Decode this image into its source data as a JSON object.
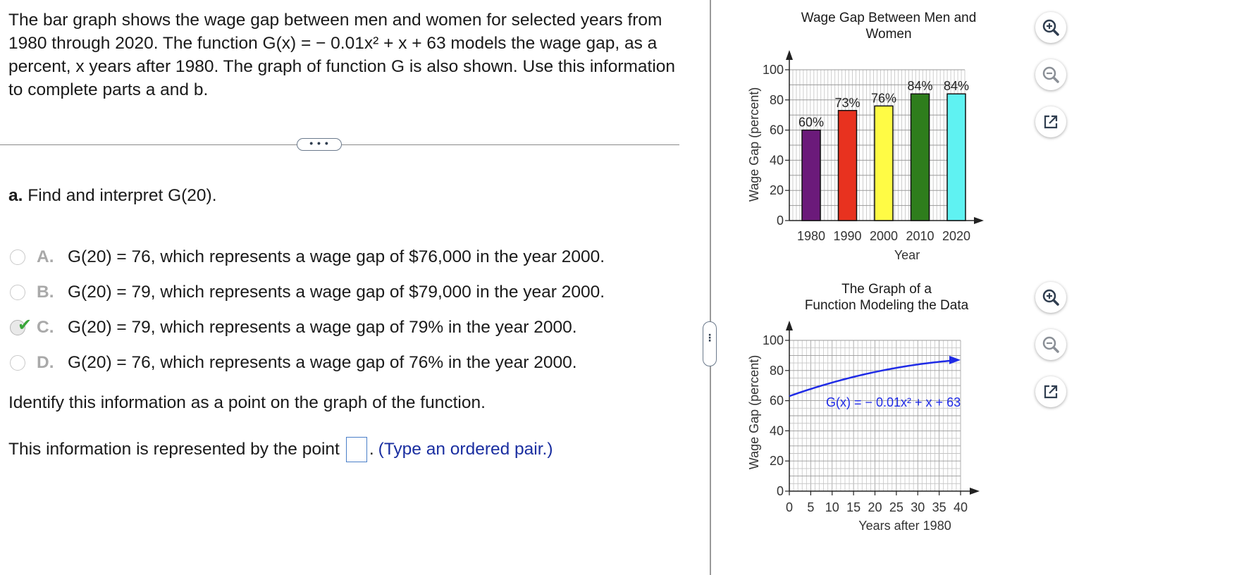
{
  "problem": {
    "intro": "The bar graph shows the wage gap between men and women for selected years from 1980 through 2020. The function G(x) = − 0.01x² + x + 63 models the wage gap, as a percent, x years after 1980. The graph of function G is also shown. Use this information to complete parts a and b.",
    "more_label": "• • •",
    "part_a_letter": "a.",
    "part_a_text": "Find and interpret G(20).",
    "options": [
      {
        "letter": "A.",
        "text": "G(20) = 76, which represents a wage gap of $76,000 in the year 2000.",
        "selected": false
      },
      {
        "letter": "B.",
        "text": "G(20) = 79, which represents a wage gap of $79,000 in the year 2000.",
        "selected": false
      },
      {
        "letter": "C.",
        "text": "G(20) = 79, which represents a wage gap of 79% in the year 2000.",
        "selected": true
      },
      {
        "letter": "D.",
        "text": "G(20) = 76, which represents a wage gap of 76% in the year 2000.",
        "selected": false
      }
    ],
    "identify_text": "Identify this information as a point on the graph of the function.",
    "point_prefix": "This information is represented by the point",
    "point_value": "",
    "point_suffix": ".",
    "point_hint": "(Type an ordered pair.)",
    "side_handle_label": "⋮"
  },
  "colors": {
    "accent_blue": "#1a2ea0",
    "check_green": "#3aa53a",
    "curve_blue": "#1f2be6"
  },
  "chart_data": [
    {
      "type": "bar",
      "title": "Wage Gap Between Men and Women",
      "xlabel": "Year",
      "ylabel": "Wage Gap (percent)",
      "categories": [
        "1980",
        "1990",
        "2000",
        "2010",
        "2020"
      ],
      "values": [
        60,
        73,
        76,
        84,
        84
      ],
      "data_labels": [
        "60%",
        "73%",
        "76%",
        "84%",
        "84%"
      ],
      "bar_colors": [
        "#6b1a7a",
        "#e8321f",
        "#fffb45",
        "#2e7d1c",
        "#5ff2f2"
      ],
      "ylim": [
        0,
        100
      ],
      "yticks": [
        "0",
        "20",
        "40",
        "60",
        "80",
        "100"
      ],
      "grid": true
    },
    {
      "type": "line",
      "title": "The Graph of a Function Modeling the Data",
      "xlabel": "Years after 1980",
      "ylabel": "Wage Gap (percent)",
      "annotation": "G(x) = − 0.01x² + x + 63",
      "function": {
        "a": -0.01,
        "b": 1,
        "c": 63
      },
      "xlim": [
        0,
        40
      ],
      "ylim": [
        0,
        100
      ],
      "xticks": [
        "0",
        "5",
        "10",
        "15",
        "20",
        "25",
        "30",
        "35",
        "40"
      ],
      "yticks": [
        "0",
        "20",
        "40",
        "60",
        "80",
        "100"
      ],
      "grid": true
    }
  ],
  "tools": {
    "zoom_in": "zoom-in",
    "zoom_out": "zoom-out",
    "open_new": "open-in-new-window"
  }
}
